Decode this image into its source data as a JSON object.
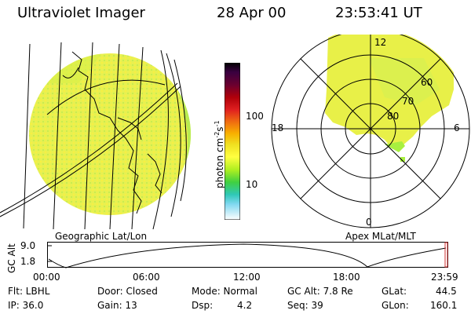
{
  "header": {
    "title": "Ultraviolet Imager",
    "date": "28 Apr 00",
    "time": "23:53:41 UT"
  },
  "colorbar": {
    "label_base": "photon cm",
    "label_exp1": "-2",
    "label_mid": "s",
    "label_exp2": "-1",
    "ticks": [
      "100",
      "10"
    ],
    "colors": [
      "#000000",
      "#3a0040",
      "#6a0030",
      "#a0000a",
      "#d01020",
      "#f05010",
      "#f8a000",
      "#e8d000",
      "#ffff30",
      "#c8f000",
      "#80e000",
      "#40d040",
      "#20c8b0",
      "#40c8e8",
      "#b0e0f0",
      "#ffffff"
    ]
  },
  "left_panel": {
    "label": "Geographic Lat/Lon"
  },
  "right_panel": {
    "label": "Apex MLat/MLT",
    "mlt_labels": {
      "top": "12",
      "left": "18",
      "right": "6",
      "bottom": "0"
    },
    "lat_labels": [
      "60",
      "70",
      "80"
    ]
  },
  "altitude_plot": {
    "ylabel": "GC Alt",
    "y_ticks": [
      "9.0",
      "1.8"
    ],
    "x_ticks": [
      "00:00",
      "06:00",
      "12:00",
      "18:00",
      "23:59"
    ]
  },
  "footer": {
    "row1": {
      "flt": "Flt: LBHL",
      "door": "Door: Closed",
      "mode": "Mode: Normal",
      "gcalt": "GC Alt: 7.8 Re",
      "glat_label": "GLat:",
      "glat_value": "44.5"
    },
    "row2": {
      "ip": "IP: 36.0",
      "gain": "Gain: 13",
      "dsp_label": "Dsp:",
      "dsp_value": "4.2",
      "seq": "Seq: 39",
      "glon_label": "GLon:",
      "glon_value": "160.1"
    }
  },
  "colors": {
    "aurora_yellow": "#f0f040",
    "aurora_green": "#a8f040"
  }
}
